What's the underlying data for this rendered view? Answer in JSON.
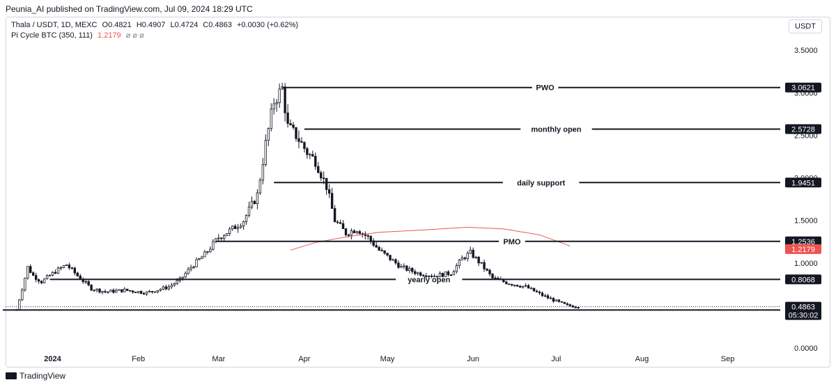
{
  "header": {
    "published": "Peunia_AI published on TradingView.com, Jul 09, 2024 18:29 UTC"
  },
  "legend": {
    "symbol": "Thala / USDT, 1D, MEXC",
    "open": "O0.4821",
    "high": "H0.4907",
    "low": "L0.4724",
    "close": "C0.4863",
    "change": "+0.0030 (+0.62%)",
    "indicator": "Pi Cycle BTC (350, 111)",
    "indicator_value": "1.2179",
    "indicator_marks": "⌀ ⌀ ⌀",
    "currency": "USDT"
  },
  "footer": {
    "brand": "TradingView"
  },
  "chart_data": {
    "type": "candlestick",
    "y_ticks": [
      "3.5000",
      "3.0000",
      "2.5000",
      "2.0000",
      "1.5000",
      "1.0000",
      "0.0000"
    ],
    "x_ticks": [
      "2024",
      "Feb",
      "Mar",
      "Apr",
      "May",
      "Jun",
      "Jul",
      "Aug",
      "Sep"
    ],
    "x_range": [
      "2023-12-15",
      "2024-09-20"
    ],
    "ylim": [
      0,
      3.6
    ],
    "levels": [
      {
        "label": "PWO",
        "value": 3.0621,
        "tag": "3.0621",
        "start": "2024-03-24"
      },
      {
        "label": "monthly open",
        "value": 2.5728,
        "tag": "2.5728",
        "start": "2024-04-01"
      },
      {
        "label": "daily support",
        "value": 1.9451,
        "tag": "1.9451",
        "start": "2024-03-21"
      },
      {
        "label": "PMO",
        "value": 1.2536,
        "tag": "1.2536",
        "start": "2024-02-29"
      },
      {
        "label": "yearly open",
        "value": 0.8068,
        "tag": "0.8068",
        "start": "2023-12-31"
      },
      {
        "label": "",
        "value": 0.4472,
        "tag": "0.4472",
        "start": "2023-12-14"
      }
    ],
    "last_price": {
      "value": 0.4863,
      "tag": "0.4863",
      "countdown": "05:30:02"
    },
    "indicator": {
      "name": "Pi Cycle BTC",
      "color": "#ef5350",
      "tag": "1.2179",
      "points": [
        [
          "2024-03-27",
          1.15
        ],
        [
          "2024-04-05",
          1.24
        ],
        [
          "2024-04-15",
          1.3
        ],
        [
          "2024-04-28",
          1.36
        ],
        [
          "2024-05-15",
          1.39
        ],
        [
          "2024-05-30",
          1.42
        ],
        [
          "2024-06-12",
          1.4
        ],
        [
          "2024-06-25",
          1.33
        ],
        [
          "2024-07-06",
          1.2
        ]
      ]
    },
    "price_path": [
      [
        "2023-12-19",
        0.45
      ],
      [
        "2023-12-21",
        0.7
      ],
      [
        "2023-12-23",
        0.95
      ],
      [
        "2023-12-25",
        0.85
      ],
      [
        "2023-12-28",
        0.78
      ],
      [
        "2024-01-02",
        0.9
      ],
      [
        "2024-01-06",
        0.98
      ],
      [
        "2024-01-10",
        0.85
      ],
      [
        "2024-01-15",
        0.7
      ],
      [
        "2024-01-20",
        0.66
      ],
      [
        "2024-01-27",
        0.68
      ],
      [
        "2024-02-04",
        0.65
      ],
      [
        "2024-02-12",
        0.72
      ],
      [
        "2024-02-16",
        0.8
      ],
      [
        "2024-02-20",
        0.95
      ],
      [
        "2024-02-25",
        1.1
      ],
      [
        "2024-03-01",
        1.3
      ],
      [
        "2024-03-06",
        1.4
      ],
      [
        "2024-03-10",
        1.5
      ],
      [
        "2024-03-15",
        1.8
      ],
      [
        "2024-03-18",
        2.4
      ],
      [
        "2024-03-21",
        2.9
      ],
      [
        "2024-03-24",
        3.05
      ],
      [
        "2024-03-26",
        2.6
      ],
      [
        "2024-03-29",
        2.5
      ],
      [
        "2024-04-02",
        2.3
      ],
      [
        "2024-04-05",
        2.2
      ],
      [
        "2024-04-09",
        1.9
      ],
      [
        "2024-04-12",
        1.5
      ],
      [
        "2024-04-16",
        1.35
      ],
      [
        "2024-04-20",
        1.4
      ],
      [
        "2024-04-24",
        1.3
      ],
      [
        "2024-04-28",
        1.15
      ],
      [
        "2024-05-02",
        1.05
      ],
      [
        "2024-05-06",
        0.95
      ],
      [
        "2024-05-12",
        0.88
      ],
      [
        "2024-05-18",
        0.85
      ],
      [
        "2024-05-24",
        0.88
      ],
      [
        "2024-05-28",
        1.05
      ],
      [
        "2024-05-31",
        1.12
      ],
      [
        "2024-06-04",
        0.98
      ],
      [
        "2024-06-08",
        0.82
      ],
      [
        "2024-06-14",
        0.76
      ],
      [
        "2024-06-20",
        0.72
      ],
      [
        "2024-06-26",
        0.62
      ],
      [
        "2024-07-01",
        0.55
      ],
      [
        "2024-07-05",
        0.5
      ],
      [
        "2024-07-09",
        0.486
      ]
    ]
  }
}
